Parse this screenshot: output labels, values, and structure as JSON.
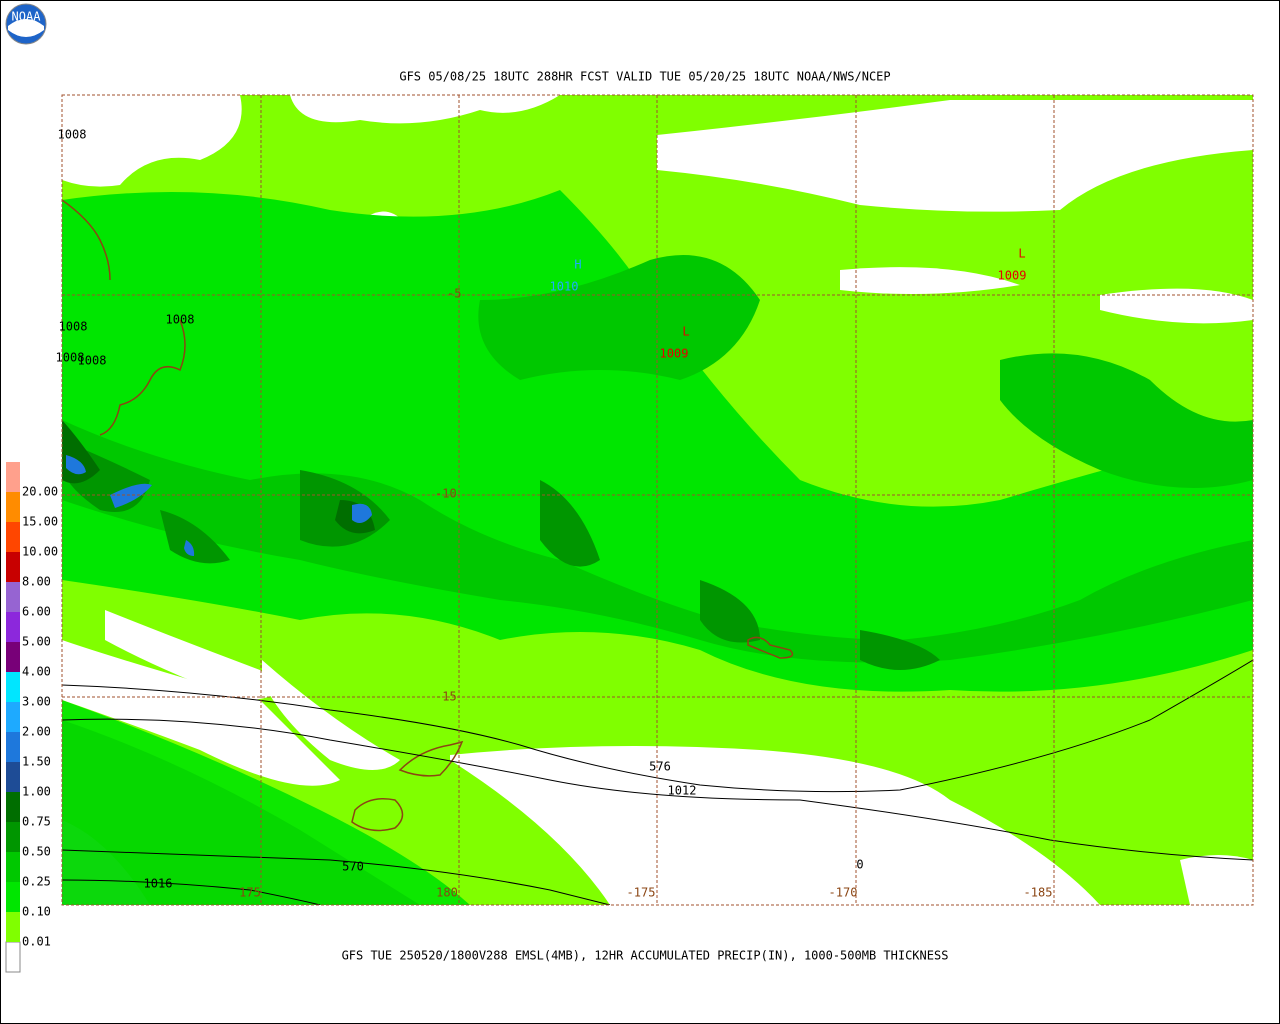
{
  "title": "GFS 05/08/25 18UTC 288HR FCST VALID TUE 05/20/25 18UTC NOAA/NWS/NCEP",
  "footer": "GFS TUE 250520/1800V288 EMSL(4MB), 12HR ACCUMULATED PRECIP(IN), 1000-500MB THICKNESS",
  "logo": "NOAA",
  "legend": {
    "base_color": "#ffffff",
    "items": [
      {
        "label": "0.01",
        "color": "#80ff00"
      },
      {
        "label": "0.10",
        "color": "#00e600"
      },
      {
        "label": "0.25",
        "color": "#00c800"
      },
      {
        "label": "0.50",
        "color": "#009600"
      },
      {
        "label": "0.75",
        "color": "#006e00"
      },
      {
        "label": "1.00",
        "color": "#1e4c96"
      },
      {
        "label": "1.50",
        "color": "#1e78dc"
      },
      {
        "label": "2.00",
        "color": "#1eaaff"
      },
      {
        "label": "3.00",
        "color": "#00e6ff"
      },
      {
        "label": "4.00",
        "color": "#780078"
      },
      {
        "label": "5.00",
        "color": "#8c28dc"
      },
      {
        "label": "6.00",
        "color": "#9664d2"
      },
      {
        "label": "8.00",
        "color": "#c80000"
      },
      {
        "label": "10.00",
        "color": "#ff4600"
      },
      {
        "label": "15.00",
        "color": "#ff8c00"
      },
      {
        "label": "20.00",
        "color": "#ffa08c"
      }
    ],
    "top_color": "#ffb4c8"
  },
  "lat_labels": [
    "-5",
    "-10",
    "-15"
  ],
  "lon_labels": [
    "175",
    "180",
    "-175",
    "-170",
    "-185"
  ],
  "centers": [
    {
      "symbol": "H",
      "value": "1010",
      "color": "#1eaaff"
    },
    {
      "symbol": "L",
      "value": "1009",
      "color": "#e60000"
    },
    {
      "symbol": "L",
      "value": "1009",
      "color": "#e60000"
    }
  ],
  "contour_labels": [
    "1008",
    "1008",
    "1008",
    "1008",
    "1008",
    "576",
    "1012",
    "570",
    "1016",
    "0"
  ]
}
